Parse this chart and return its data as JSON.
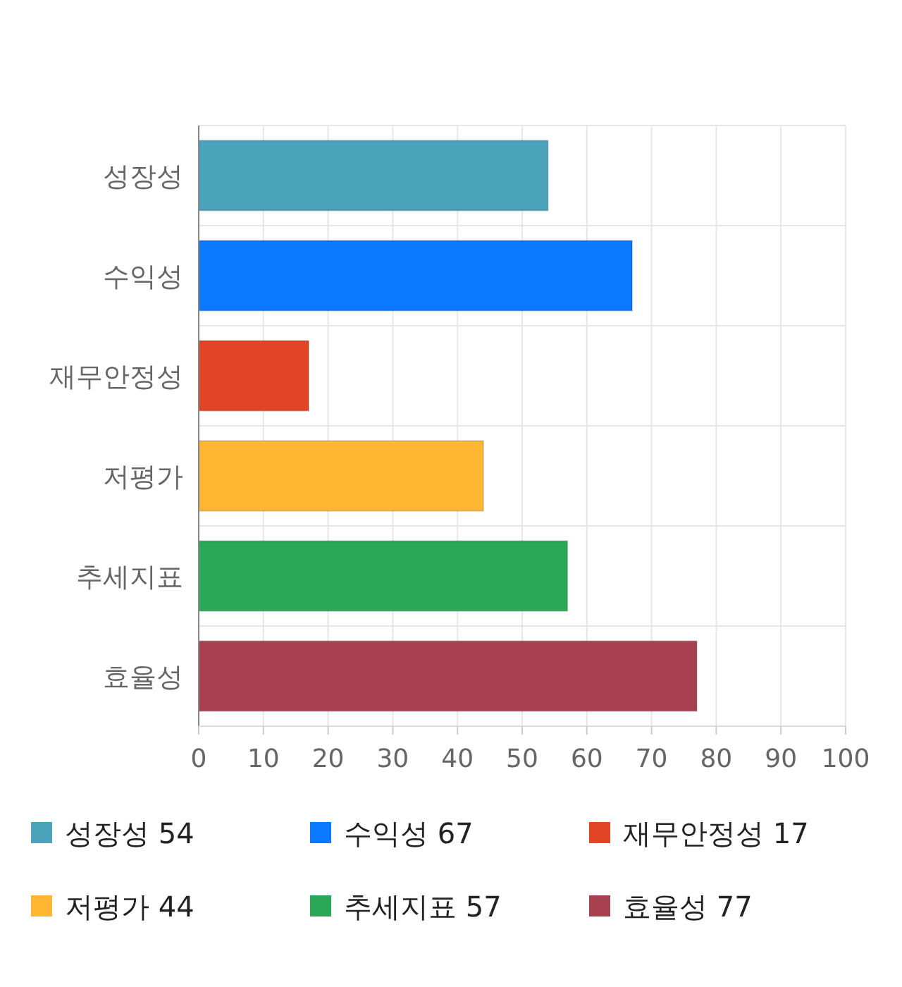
{
  "chart_data": {
    "type": "bar",
    "orientation": "horizontal",
    "categories": [
      "성장성",
      "수익성",
      "재무안정성",
      "저평가",
      "추세지표",
      "효율성"
    ],
    "series": [
      {
        "name": "성장성 54",
        "color": "#4aa2bb",
        "values": [
          54,
          null,
          null,
          null,
          null,
          null
        ]
      },
      {
        "name": "수익성 67",
        "color": "#0a78ff",
        "values": [
          null,
          67,
          null,
          null,
          null,
          null
        ]
      },
      {
        "name": "재무안정성 17",
        "color": "#e24526",
        "values": [
          null,
          null,
          17,
          null,
          null,
          null
        ]
      },
      {
        "name": "저평가 44",
        "color": "#ffb733",
        "values": [
          null,
          null,
          null,
          44,
          null,
          null
        ]
      },
      {
        "name": "추세지표 57",
        "color": "#2aa757",
        "values": [
          null,
          null,
          null,
          null,
          57,
          null
        ]
      },
      {
        "name": "효율성 77",
        "color": "#a7414f",
        "values": [
          null,
          null,
          null,
          null,
          null,
          77
        ]
      }
    ],
    "xlim": [
      0,
      100
    ],
    "xticks": [
      0,
      10,
      20,
      30,
      40,
      50,
      60,
      70,
      80,
      90,
      100
    ],
    "grid": true,
    "legend": "bottom"
  }
}
